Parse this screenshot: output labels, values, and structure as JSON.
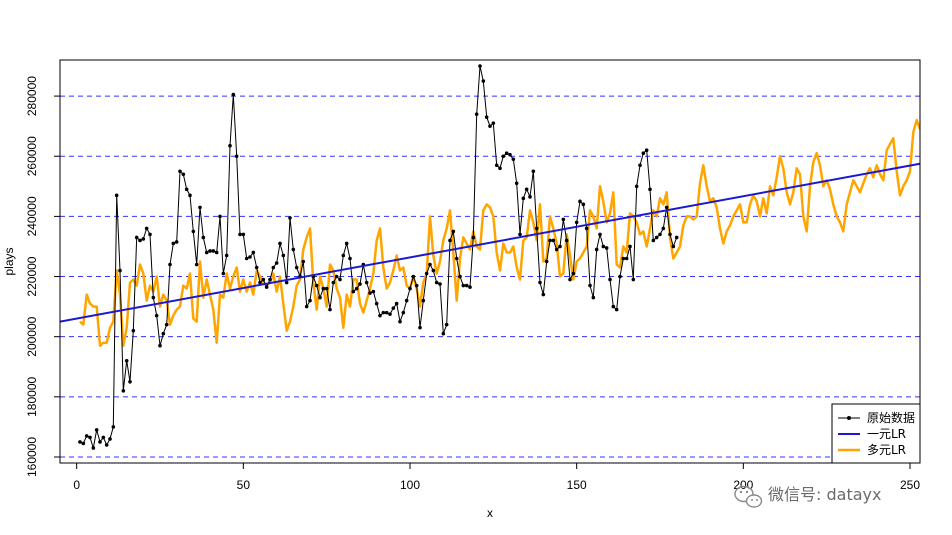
{
  "chart_data": {
    "type": "line",
    "xlabel": "x",
    "ylabel": "plays",
    "xlim": [
      -5,
      253
    ],
    "ylim": [
      158000,
      292000
    ],
    "x_ticks": [
      0,
      50,
      100,
      150,
      200,
      250
    ],
    "y_ticks": [
      160000,
      180000,
      200000,
      220000,
      240000,
      260000,
      280000
    ],
    "h_gridlines": [
      160000,
      180000,
      200000,
      220000,
      240000,
      260000,
      280000
    ],
    "grid_style": "dashed-blue-horizontal",
    "legend_position": "bottom-right",
    "legend": [
      "原始数据",
      "一元LR",
      "多元LR"
    ],
    "colors": {
      "raw": "#000000",
      "lr1": "#1a1acc",
      "lr2": "#ffa500",
      "grid": "#3333ff"
    },
    "series": [
      {
        "name": "原始数据",
        "style": "line-with-points",
        "x_start": 1,
        "values": [
          165000,
          164500,
          167000,
          166500,
          163000,
          169000,
          165000,
          166500,
          164000,
          166000,
          170000,
          247000,
          222000,
          182000,
          192000,
          185000,
          202000,
          233000,
          232000,
          232500,
          236000,
          234000,
          213000,
          207000,
          197000,
          201000,
          204000,
          224000,
          231000,
          231500,
          255000,
          254000,
          249000,
          247000,
          235000,
          224000,
          243000,
          233000,
          228000,
          228500,
          228500,
          228000,
          240000,
          221000,
          227000,
          263500,
          280500,
          260000,
          234000,
          234000,
          226000,
          226500,
          228000,
          223000,
          218000,
          219000,
          216500,
          219000,
          223000,
          224500,
          231000,
          227000,
          218000,
          239500,
          229000,
          223000,
          220000,
          225000,
          210000,
          212000,
          220000,
          217000,
          213000,
          216000,
          216000,
          209000,
          218000,
          220000,
          219000,
          227000,
          231000,
          226000,
          215000,
          216000,
          217500,
          224000,
          218000,
          214500,
          215000,
          211000,
          207000,
          208000,
          208000,
          207500,
          209500,
          211000,
          205000,
          208000,
          212000,
          216000,
          220000,
          217000,
          203000,
          212000,
          221000,
          224000,
          222000,
          218000,
          217500,
          201000,
          204000,
          232000,
          235000,
          226000,
          220000,
          217000,
          217000,
          216500,
          233000,
          274000,
          290000,
          285000,
          273000,
          270000,
          271000,
          257000,
          256000,
          260000,
          261000,
          260500,
          259000,
          251000,
          234000,
          246000,
          249000,
          246500,
          255000,
          236000,
          218000,
          214000,
          225000,
          232000,
          232000,
          229000,
          230000,
          239000,
          232000,
          219000,
          221000,
          238000,
          245000,
          244000,
          236000,
          217000,
          213000,
          229000,
          234000,
          230000,
          229500,
          219000,
          210000,
          209000,
          220000,
          226000,
          226000,
          230000,
          219000,
          250000,
          257000,
          261000,
          262000,
          249000,
          232000,
          233000,
          234000,
          236000,
          243000,
          234000,
          230000,
          233000
        ]
      },
      {
        "name": "一元LR",
        "style": "line",
        "x": [
          -5,
          253
        ],
        "values": [
          205000,
          257500
        ]
      },
      {
        "name": "多元LR",
        "style": "line",
        "x_start": 1,
        "values": [
          205000,
          204000,
          214000,
          211000,
          210000,
          210000,
          197000,
          198000,
          198000,
          203000,
          205000,
          222000,
          214000,
          197000,
          203000,
          218000,
          219000,
          217000,
          224000,
          221000,
          212000,
          217000,
          215000,
          220000,
          210000,
          214000,
          212000,
          204000,
          207000,
          209000,
          210000,
          217000,
          216000,
          221000,
          206000,
          205000,
          225000,
          213000,
          219000,
          214000,
          209000,
          198000,
          214000,
          213000,
          221000,
          216000,
          220000,
          223000,
          215000,
          219000,
          215000,
          218000,
          214000,
          222000,
          220000,
          218000,
          217000,
          218000,
          221000,
          215000,
          220000,
          211000,
          202000,
          205000,
          210000,
          217000,
          219000,
          229000,
          233000,
          236000,
          218000,
          209000,
          220000,
          216000,
          210000,
          224000,
          222000,
          216000,
          213000,
          203000,
          214000,
          210000,
          219000,
          219000,
          211000,
          208000,
          212000,
          216000,
          221000,
          232000,
          236000,
          223000,
          216000,
          218000,
          222000,
          227000,
          222000,
          223000,
          217000,
          216000,
          220000,
          216000,
          210000,
          218000,
          221000,
          240000,
          227000,
          221000,
          225000,
          232000,
          236000,
          242000,
          228000,
          212000,
          226000,
          233000,
          231000,
          229000,
          235000,
          230000,
          229000,
          242000,
          244000,
          243000,
          240000,
          228000,
          222000,
          231000,
          228000,
          228000,
          230000,
          223000,
          219000,
          232000,
          233000,
          242000,
          238000,
          232000,
          244000,
          225000,
          226000,
          240000,
          236000,
          231000,
          220000,
          221000,
          234000,
          227000,
          219000,
          225000,
          226000,
          228000,
          230000,
          242000,
          240000,
          236000,
          250000,
          245000,
          238000,
          241000,
          248000,
          224000,
          223000,
          230000,
          228000,
          241000,
          240000,
          238000,
          234000,
          235000,
          230000,
          236000,
          242000,
          240000,
          246000,
          244000,
          248000,
          233000,
          226000,
          228000,
          230000,
          237000,
          240000,
          240000,
          239000,
          240000,
          251000,
          257000,
          250000,
          245000,
          246000,
          243000,
          236000,
          231000,
          235000,
          237000,
          240000,
          242000,
          244000,
          238000,
          238000,
          244000,
          247000,
          245000,
          240000,
          246000,
          241000,
          250000,
          247000,
          253000,
          260000,
          256000,
          248000,
          244000,
          248000,
          256000,
          254000,
          240000,
          235000,
          250000,
          258000,
          261000,
          257000,
          250000,
          252000,
          249000,
          244000,
          240000,
          238000,
          235000,
          244000,
          248000,
          252000,
          250000,
          248000,
          251000,
          254000,
          256000,
          253000,
          257000,
          254000,
          252000,
          262000,
          264000,
          266000,
          255000,
          247000,
          250000,
          252000,
          255000,
          268000,
          272000,
          269000
        ]
      }
    ]
  },
  "watermark": {
    "text": "微信号: datayx",
    "icon": "wechat-logo-icon"
  }
}
